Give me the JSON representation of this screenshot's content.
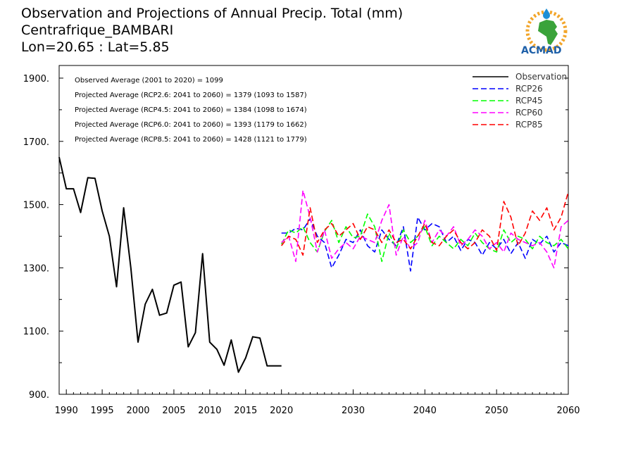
{
  "header": {
    "title": "Observation and Projections of Annual Precip. Total (mm)",
    "location": "Centrafrique_BAMBARI",
    "coords": "Lon=20.65 : Lat=5.85"
  },
  "logo": {
    "text": "ACMAD"
  },
  "colors": {
    "observation": "#000000",
    "rcp26": "#0000ff",
    "rcp45": "#00ff00",
    "rcp60": "#ff00ff",
    "rcp85": "#ff0000"
  },
  "chart_data": {
    "type": "line",
    "xlim": [
      1989,
      2060
    ],
    "ylim": [
      900,
      1940
    ],
    "x_ticks": [
      1990,
      1995,
      2000,
      2005,
      2010,
      2015,
      2020,
      2030,
      2040,
      2050,
      2060
    ],
    "x_tick_labels": [
      "1990",
      "1995",
      "2000",
      "2005",
      "2010",
      "2015",
      "2020",
      "2030",
      "2040",
      "2050",
      "2060"
    ],
    "y_ticks": [
      900,
      1100,
      1300,
      1500,
      1700,
      1900
    ],
    "y_tick_labels": [
      "900.",
      "1100.",
      "1300.",
      "1500.",
      "1700.",
      "1900."
    ],
    "grid": false,
    "legend_position": "top-right",
    "annotations": [
      "Observed Average (2001 to 2020) = 1099",
      "Projected Average (RCP2.6: 2041 to 2060) = 1379 (1093 to 1587)",
      "Projected Average (RCP4.5: 2041 to 2060) = 1384 (1098 to 1674)",
      "Projected Average (RCP6.0: 2041 to 2060) = 1393 (1179 to 1662)",
      "Projected Average (RCP8.5: 2041 to 2060) = 1428 (1121 to 1779)"
    ],
    "series": [
      {
        "name": "Observation",
        "key": "observation",
        "dashed": false,
        "x": [
          1989,
          1990,
          1991,
          1992,
          1993,
          1994,
          1995,
          1996,
          1997,
          1998,
          1999,
          2000,
          2001,
          2002,
          2003,
          2004,
          2005,
          2006,
          2007,
          2008,
          2009,
          2010,
          2011,
          2012,
          2013,
          2014,
          2015,
          2016,
          2017,
          2018,
          2019,
          2020
        ],
        "values": [
          1650,
          1550,
          1550,
          1475,
          1585,
          1583,
          1480,
          1400,
          1240,
          1490,
          1300,
          1065,
          1185,
          1232,
          1150,
          1157,
          1245,
          1255,
          1050,
          1095,
          1345,
          1065,
          1042,
          992,
          1072,
          970,
          1015,
          1082,
          1078,
          990,
          990,
          990
        ]
      },
      {
        "name": "RCP26",
        "key": "rcp26",
        "dashed": true,
        "x": [
          2020,
          2021,
          2022,
          2023,
          2024,
          2025,
          2026,
          2027,
          2028,
          2029,
          2030,
          2031,
          2032,
          2033,
          2034,
          2035,
          2036,
          2037,
          2038,
          2039,
          2040,
          2041,
          2042,
          2043,
          2044,
          2045,
          2046,
          2047,
          2048,
          2049,
          2050,
          2051,
          2052,
          2053,
          2054,
          2055,
          2056,
          2057,
          2058,
          2059,
          2060
        ],
        "values": [
          1410,
          1410,
          1425,
          1420,
          1455,
          1400,
          1380,
          1300,
          1340,
          1390,
          1380,
          1420,
          1370,
          1350,
          1420,
          1390,
          1370,
          1430,
          1290,
          1460,
          1420,
          1440,
          1430,
          1380,
          1400,
          1355,
          1390,
          1380,
          1340,
          1380,
          1360,
          1390,
          1345,
          1380,
          1330,
          1390,
          1375,
          1400,
          1350,
          1380,
          1370
        ]
      },
      {
        "name": "RCP45",
        "key": "rcp45",
        "dashed": true,
        "x": [
          2020,
          2021,
          2022,
          2023,
          2024,
          2025,
          2026,
          2027,
          2028,
          2029,
          2030,
          2031,
          2032,
          2033,
          2034,
          2035,
          2036,
          2037,
          2038,
          2039,
          2040,
          2041,
          2042,
          2043,
          2044,
          2045,
          2046,
          2047,
          2048,
          2049,
          2050,
          2051,
          2052,
          2053,
          2054,
          2055,
          2056,
          2057,
          2058,
          2059,
          2060
        ],
        "values": [
          1375,
          1420,
          1410,
          1430,
          1380,
          1350,
          1415,
          1450,
          1380,
          1430,
          1395,
          1400,
          1470,
          1430,
          1320,
          1410,
          1360,
          1420,
          1380,
          1400,
          1430,
          1370,
          1400,
          1380,
          1360,
          1390,
          1370,
          1410,
          1380,
          1360,
          1350,
          1420,
          1380,
          1400,
          1390,
          1360,
          1400,
          1380,
          1370,
          1390,
          1360
        ]
      },
      {
        "name": "RCP60",
        "key": "rcp60",
        "dashed": true,
        "x": [
          2020,
          2021,
          2022,
          2023,
          2024,
          2025,
          2026,
          2027,
          2028,
          2029,
          2030,
          2031,
          2032,
          2033,
          2034,
          2035,
          2036,
          2037,
          2038,
          2039,
          2040,
          2041,
          2042,
          2043,
          2044,
          2045,
          2046,
          2047,
          2048,
          2049,
          2050,
          2051,
          2052,
          2053,
          2054,
          2055,
          2056,
          2057,
          2058,
          2059,
          2060
        ],
        "values": [
          1380,
          1400,
          1320,
          1545,
          1460,
          1350,
          1420,
          1330,
          1360,
          1380,
          1360,
          1400,
          1390,
          1380,
          1450,
          1500,
          1340,
          1400,
          1360,
          1380,
          1450,
          1380,
          1420,
          1400,
          1430,
          1370,
          1390,
          1420,
          1400,
          1360,
          1380,
          1350,
          1410,
          1390,
          1380,
          1370,
          1380,
          1350,
          1300,
          1430,
          1450
        ]
      },
      {
        "name": "RCP85",
        "key": "rcp85",
        "dashed": true,
        "x": [
          2020,
          2021,
          2022,
          2023,
          2024,
          2025,
          2026,
          2027,
          2028,
          2029,
          2030,
          2031,
          2032,
          2033,
          2034,
          2035,
          2036,
          2037,
          2038,
          2039,
          2040,
          2041,
          2042,
          2043,
          2044,
          2045,
          2046,
          2047,
          2048,
          2049,
          2050,
          2051,
          2052,
          2053,
          2054,
          2055,
          2056,
          2057,
          2058,
          2059,
          2060
        ],
        "values": [
          1370,
          1400,
          1390,
          1340,
          1490,
          1380,
          1420,
          1440,
          1400,
          1420,
          1440,
          1390,
          1430,
          1420,
          1380,
          1420,
          1380,
          1390,
          1360,
          1400,
          1440,
          1380,
          1370,
          1400,
          1420,
          1380,
          1360,
          1380,
          1420,
          1400,
          1355,
          1510,
          1460,
          1370,
          1410,
          1480,
          1450,
          1490,
          1420,
          1460,
          1540
        ]
      }
    ]
  }
}
